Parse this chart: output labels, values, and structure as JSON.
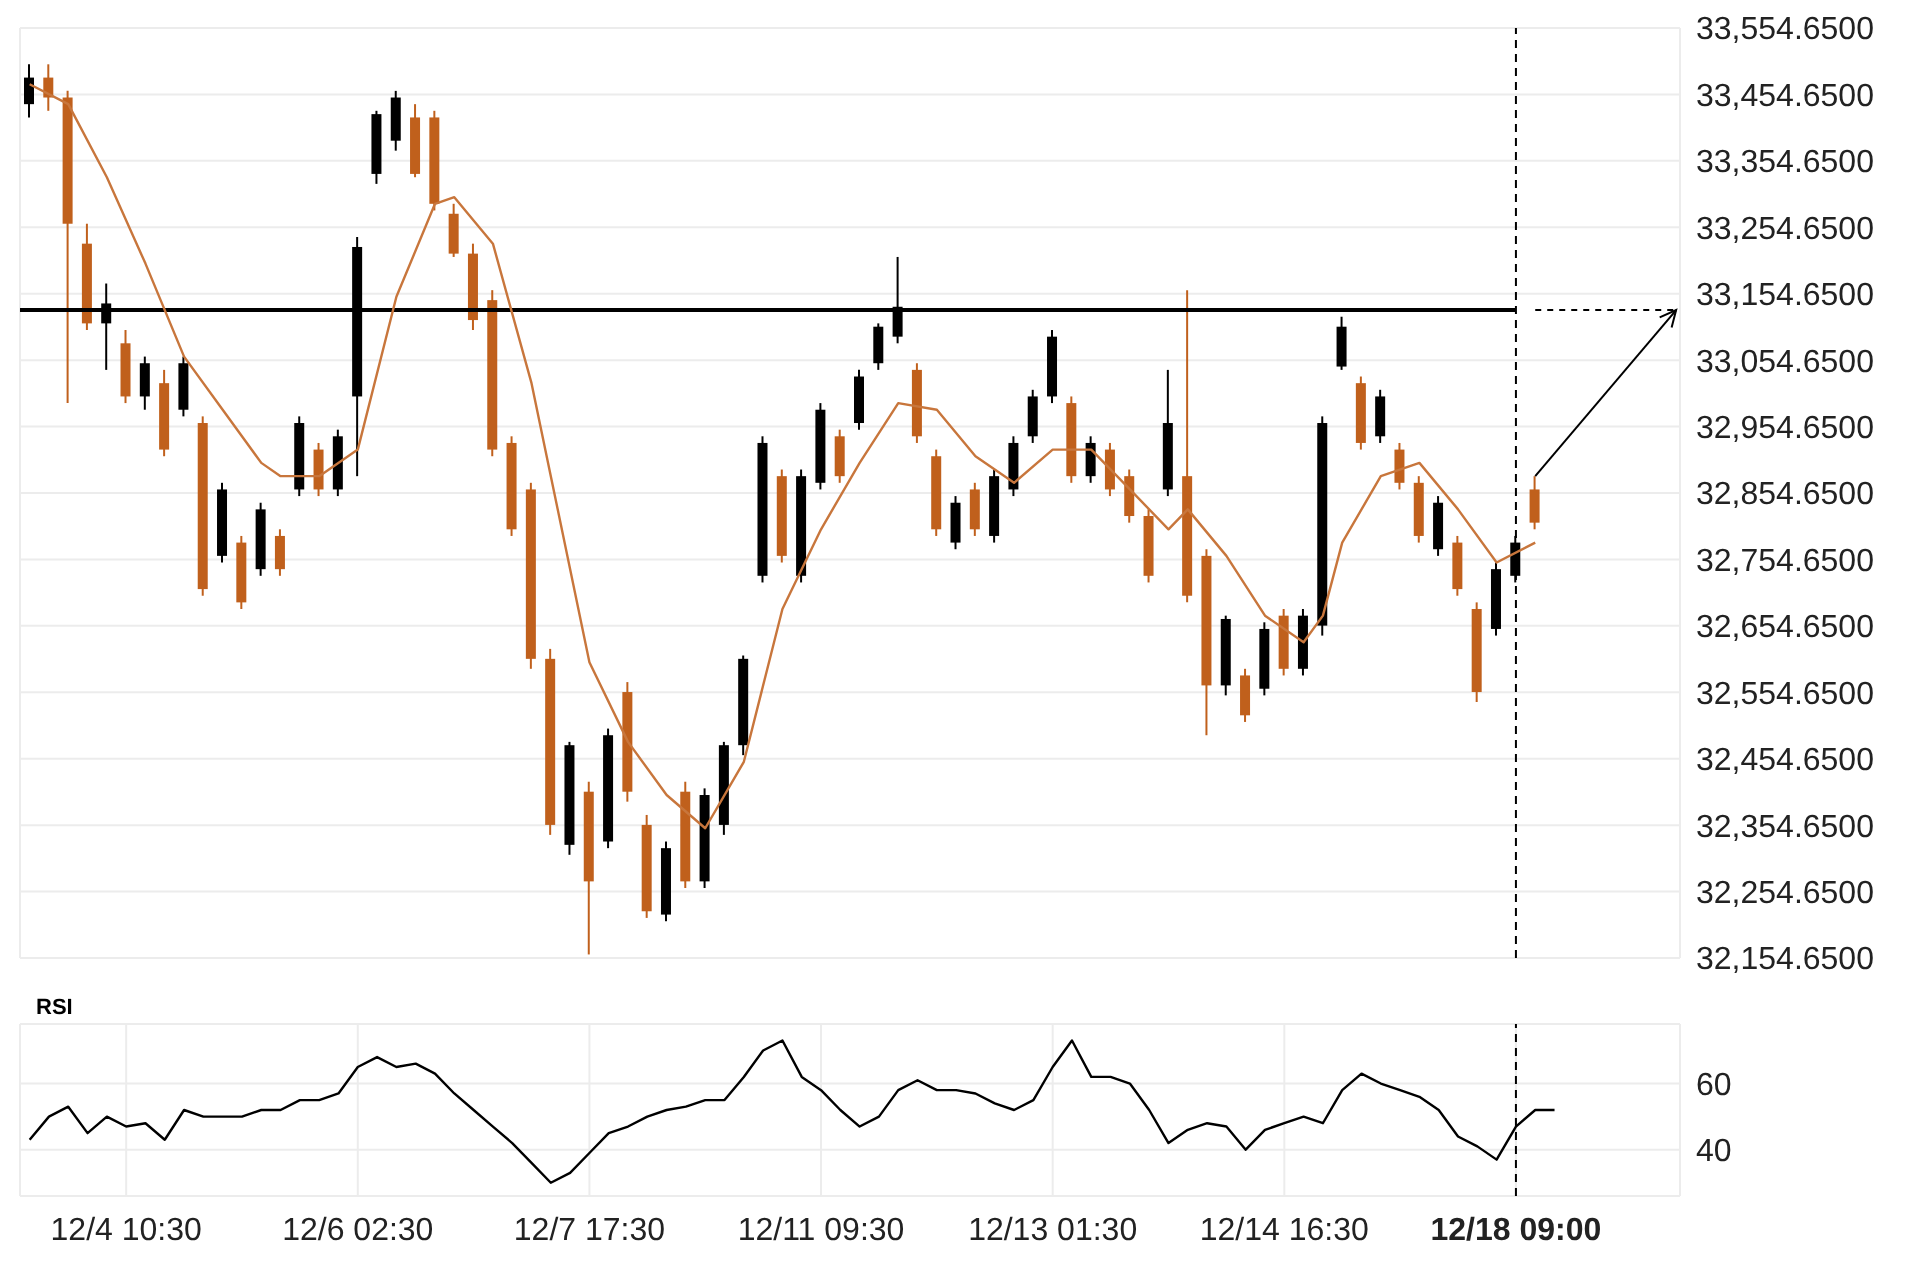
{
  "chart_data": [
    {
      "type": "candlestick",
      "categories": [
        null,
        null,
        null,
        null,
        null,
        "12/4 10:30",
        null,
        null,
        null,
        null,
        null,
        null,
        null,
        null,
        null,
        null,
        null,
        "12/6 02:30",
        null,
        null,
        null,
        null,
        null,
        null,
        null,
        null,
        null,
        null,
        null,
        "12/7 17:30",
        null,
        null,
        null,
        null,
        null,
        null,
        null,
        null,
        null,
        null,
        null,
        "12/11 09:30",
        null,
        null,
        null,
        null,
        null,
        null,
        null,
        null,
        null,
        null,
        null,
        "12/13 01:30",
        null,
        null,
        null,
        null,
        null,
        null,
        null,
        null,
        null,
        null,
        null,
        "12/14 16:30",
        null,
        null,
        null,
        null,
        null,
        null,
        null,
        null,
        null,
        null,
        null,
        "12/18 09:00",
        null,
        null,
        null,
        null,
        null,
        null,
        null,
        null
      ],
      "series": [
        {
          "ohlc": [
            [
              33440,
              33500,
              33420,
              33480
            ],
            [
              33480,
              33500,
              33430,
              33450
            ],
            [
              33450,
              33460,
              32990,
              33260
            ],
            [
              33230,
              33260,
              33100,
              33110
            ],
            [
              33110,
              33170,
              33040,
              33140
            ],
            [
              33080,
              33100,
              32990,
              33000
            ],
            [
              33000,
              33060,
              32980,
              33050
            ],
            [
              33020,
              33040,
              32910,
              32920
            ],
            [
              32980,
              33060,
              32970,
              33050
            ],
            [
              32960,
              32970,
              32700,
              32710
            ],
            [
              32760,
              32870,
              32750,
              32860
            ],
            [
              32780,
              32790,
              32680,
              32690
            ],
            [
              32740,
              32840,
              32730,
              32830
            ],
            [
              32790,
              32800,
              32730,
              32740
            ],
            [
              32860,
              32970,
              32850,
              32960
            ],
            [
              32920,
              32930,
              32850,
              32860
            ],
            [
              32860,
              32950,
              32850,
              32940
            ],
            [
              33000,
              33240,
              32880,
              33225
            ],
            [
              33335,
              33430,
              33320,
              33425
            ],
            [
              33385,
              33460,
              33370,
              33450
            ],
            [
              33420,
              33440,
              33330,
              33335
            ],
            [
              33420,
              33430,
              33280,
              33290
            ],
            [
              33275,
              33290,
              33210,
              33215
            ],
            [
              33215,
              33230,
              33100,
              33115
            ],
            [
              33145,
              33160,
              32910,
              32920
            ],
            [
              32930,
              32940,
              32790,
              32800
            ],
            [
              32860,
              32870,
              32590,
              32605
            ],
            [
              32605,
              32620,
              32340,
              32355
            ],
            [
              32325,
              32480,
              32310,
              32475
            ],
            [
              32405,
              32420,
              32160,
              32270
            ],
            [
              32330,
              32500,
              32320,
              32490
            ],
            [
              32555,
              32570,
              32390,
              32405
            ],
            [
              32355,
              32370,
              32215,
              32225
            ],
            [
              32220,
              32330,
              32210,
              32320
            ],
            [
              32405,
              32420,
              32260,
              32270
            ],
            [
              32270,
              32410,
              32260,
              32400
            ],
            [
              32355,
              32480,
              32340,
              32475
            ],
            [
              32475,
              32610,
              32460,
              32605
            ],
            [
              32730,
              32940,
              32720,
              32930
            ],
            [
              32880,
              32890,
              32750,
              32760
            ],
            [
              32730,
              32890,
              32720,
              32880
            ],
            [
              32870,
              32990,
              32860,
              32980
            ],
            [
              32940,
              32950,
              32870,
              32880
            ],
            [
              32960,
              33040,
              32950,
              33030
            ],
            [
              33050,
              33110,
              33040,
              33105
            ],
            [
              33090,
              33210,
              33080,
              33135
            ],
            [
              33040,
              33050,
              32930,
              32940
            ],
            [
              32910,
              32920,
              32790,
              32800
            ],
            [
              32780,
              32850,
              32770,
              32840
            ],
            [
              32860,
              32870,
              32790,
              32800
            ],
            [
              32790,
              32890,
              32780,
              32880
            ],
            [
              32860,
              32940,
              32850,
              32930
            ],
            [
              32940,
              33010,
              32930,
              33000
            ],
            [
              33000,
              33100,
              32990,
              33090
            ],
            [
              32990,
              33000,
              32870,
              32880
            ],
            [
              32880,
              32940,
              32870,
              32930
            ],
            [
              32920,
              32930,
              32850,
              32860
            ],
            [
              32880,
              32890,
              32810,
              32820
            ],
            [
              32820,
              32830,
              32720,
              32730
            ],
            [
              32860,
              33040,
              32850,
              32960
            ],
            [
              32880,
              33160,
              32690,
              32700
            ],
            [
              32760,
              32770,
              32490,
              32565
            ],
            [
              32565,
              32670,
              32550,
              32665
            ],
            [
              32580,
              32590,
              32510,
              32520
            ],
            [
              32560,
              32660,
              32550,
              32650
            ],
            [
              32670,
              32680,
              32580,
              32590
            ],
            [
              32590,
              32680,
              32580,
              32670
            ],
            [
              32655,
              32970,
              32640,
              32960
            ],
            [
              33045,
              33120,
              33040,
              33105
            ],
            [
              33020,
              33030,
              32920,
              32930
            ],
            [
              32940,
              33010,
              32930,
              33000
            ],
            [
              32920,
              32930,
              32860,
              32870
            ],
            [
              32870,
              32880,
              32780,
              32790
            ],
            [
              32770,
              32850,
              32760,
              32840
            ],
            [
              32780,
              32790,
              32700,
              32710
            ],
            [
              32680,
              32690,
              32540,
              32555
            ],
            [
              32650,
              32750,
              32640,
              32740
            ],
            [
              32730,
              32790,
              32720,
              32780
            ],
            [
              32860,
              32880,
              32800,
              32810
            ],
            null,
            null,
            null,
            null,
            null,
            null,
            null
          ],
          "colors": [
            "#000000",
            "#c0601c",
            "#c0601c",
            "#c0601c",
            "#000000",
            "#c0601c",
            "#000000",
            "#c0601c",
            "#000000",
            "#c0601c",
            "#000000",
            "#c0601c",
            "#000000",
            "#c0601c",
            "#000000",
            "#c0601c",
            "#000000",
            "#000000",
            "#000000",
            "#000000",
            "#c0601c",
            "#c0601c",
            "#c0601c",
            "#c0601c",
            "#c0601c",
            "#c0601c",
            "#c0601c",
            "#c0601c",
            "#000000",
            "#c0601c",
            "#000000",
            "#c0601c",
            "#c0601c",
            "#000000",
            "#c0601c",
            "#000000",
            "#000000",
            "#000000",
            "#000000",
            "#c0601c",
            "#000000",
            "#000000",
            "#c0601c",
            "#000000",
            "#000000",
            "#000000",
            "#c0601c",
            "#c0601c",
            "#000000",
            "#c0601c",
            "#000000",
            "#000000",
            "#000000",
            "#000000",
            "#c0601c",
            "#000000",
            "#c0601c",
            "#c0601c",
            "#c0601c",
            "#000000",
            "#c0601c",
            "#c0601c",
            "#000000",
            "#c0601c",
            "#000000",
            "#c0601c",
            "#000000",
            "#000000",
            "#000000",
            "#c0601c",
            "#000000",
            "#c0601c",
            "#c0601c",
            "#000000",
            "#c0601c",
            "#c0601c",
            "#000000",
            "#000000",
            "#c0601c",
            null,
            null,
            null,
            null,
            null,
            null,
            null
          ]
        },
        {
          "type": "line",
          "color": "#c8763c",
          "values": [
            33470,
            null,
            33440,
            null,
            33330,
            null,
            33200,
            null,
            33060,
            null,
            32980,
            null,
            32900,
            32880,
            null,
            32880,
            null,
            32920,
            null,
            33150,
            null,
            33290,
            33300,
            null,
            33230,
            null,
            33020,
            32880,
            null,
            32600,
            null,
            32480,
            null,
            32400,
            null,
            32350,
            null,
            32450,
            null,
            32680,
            null,
            32800,
            null,
            32900,
            null,
            32990,
            null,
            32980,
            null,
            32910,
            null,
            32870,
            null,
            32920,
            null,
            32920,
            null,
            32860,
            null,
            32800,
            32830,
            null,
            32760,
            null,
            32670,
            null,
            32630,
            32670,
            32780,
            null,
            32880,
            null,
            32900,
            null,
            32830,
            null,
            32750,
            null,
            32780,
            null,
            null,
            null,
            null,
            null,
            null,
            null
          ]
        }
      ],
      "ylim": [
        32154.65,
        33554.65
      ],
      "yticks": [
        {
          "value": 32154.65,
          "label": "32,154.6500"
        },
        {
          "value": 32254.65,
          "label": "32,254.6500"
        },
        {
          "value": 32354.65,
          "label": "32,354.6500"
        },
        {
          "value": 32454.65,
          "label": "32,454.6500"
        },
        {
          "value": 32554.65,
          "label": "32,554.6500"
        },
        {
          "value": 32654.65,
          "label": "32,654.6500"
        },
        {
          "value": 32754.65,
          "label": "32,754.6500"
        },
        {
          "value": 32854.65,
          "label": "32,854.6500"
        },
        {
          "value": 32954.65,
          "label": "32,954.6500"
        },
        {
          "value": 33054.65,
          "label": "33,054.6500"
        },
        {
          "value": 33154.65,
          "label": "33,154.6500"
        },
        {
          "value": 33254.65,
          "label": "33,254.6500"
        },
        {
          "value": 33354.65,
          "label": "33,354.6500"
        },
        {
          "value": 33454.65,
          "label": "33,454.6500"
        },
        {
          "value": 33554.65,
          "label": "33,554.6500"
        }
      ],
      "ref_lines": [
        {
          "axis": "y",
          "value": 33130,
          "color": "#000000"
        },
        {
          "axis": "x",
          "value": "12/18 09:00",
          "line_style": "dashed",
          "color": "#000000"
        }
      ],
      "grid": true,
      "tick_labels": "y"
    },
    {
      "type": "line",
      "title": "RSI",
      "categories": [
        null,
        null,
        null,
        null,
        null,
        "12/4 10:30",
        null,
        null,
        null,
        null,
        null,
        null,
        null,
        null,
        null,
        null,
        null,
        "12/6 02:30",
        null,
        null,
        null,
        null,
        null,
        null,
        null,
        null,
        null,
        null,
        null,
        "12/7 17:30",
        null,
        null,
        null,
        null,
        null,
        null,
        null,
        null,
        null,
        null,
        null,
        "12/11 09:30",
        null,
        null,
        null,
        null,
        null,
        null,
        null,
        null,
        null,
        null,
        null,
        "12/13 01:30",
        null,
        null,
        null,
        null,
        null,
        null,
        null,
        null,
        null,
        null,
        null,
        "12/14 16:30",
        null,
        null,
        null,
        null,
        null,
        null,
        null,
        null,
        null,
        null,
        null,
        "12/18 09:00",
        null,
        null,
        null,
        null,
        null,
        null,
        null,
        null
      ],
      "series": [
        {
          "color": "#000000",
          "values": [
            43,
            50,
            53,
            45,
            50,
            47,
            48,
            43,
            52,
            50,
            50,
            50,
            52,
            52,
            55,
            55,
            57,
            65,
            68,
            65,
            66,
            63,
            57,
            52,
            47,
            42,
            36,
            30,
            33,
            39,
            45,
            47,
            50,
            52,
            53,
            55,
            55,
            62,
            70,
            73,
            62,
            58,
            52,
            47,
            50,
            58,
            61,
            58,
            58,
            57,
            54,
            52,
            55,
            65,
            73,
            62,
            62,
            60,
            52,
            42,
            46,
            48,
            47,
            40,
            46,
            48,
            50,
            48,
            58,
            63,
            60,
            58,
            56,
            52,
            44,
            41,
            37,
            47,
            52,
            52,
            null,
            null,
            null,
            null,
            null,
            null
          ]
        }
      ],
      "ylim": [
        26,
        78
      ],
      "yticks": [
        40,
        60
      ],
      "ref_lines": [
        {
          "axis": "x",
          "value": "12/18 09:00",
          "line_style": "dashed",
          "color": "#000000"
        }
      ],
      "grid": true,
      "marker": "none",
      "line_style": "solid"
    }
  ]
}
